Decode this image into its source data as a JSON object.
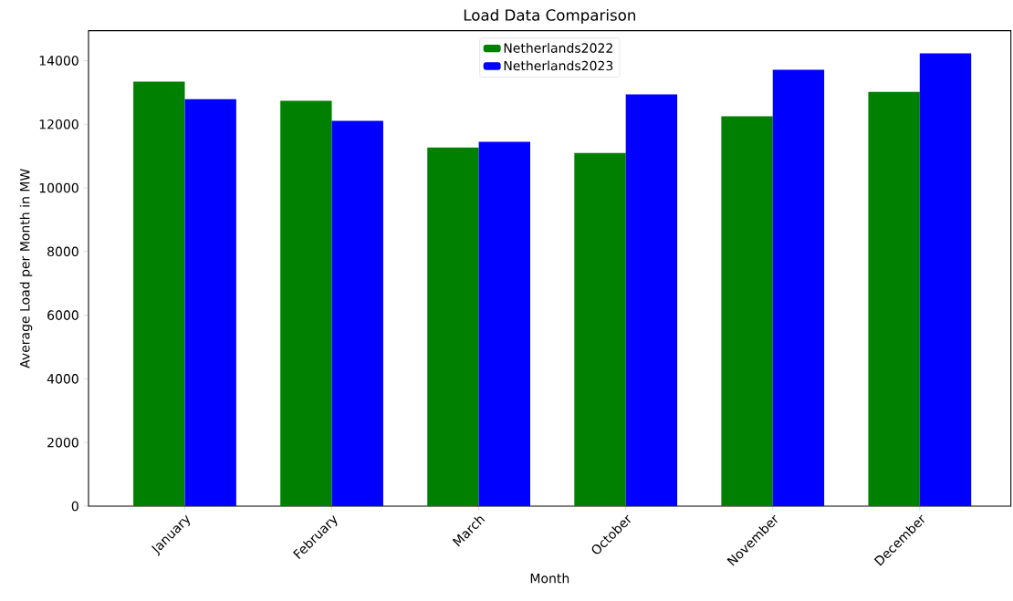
{
  "chart_data": {
    "type": "bar",
    "title": "Load Data Comparison",
    "xlabel": "Month",
    "ylabel": "Average Load per Month in MW",
    "categories": [
      "January",
      "February",
      "March",
      "October",
      "November",
      "December"
    ],
    "series": [
      {
        "name": "Netherlands2022",
        "color": "#008000",
        "values": [
          13340,
          12740,
          11270,
          11100,
          12250,
          13020
        ]
      },
      {
        "name": "Netherlands2023",
        "color": "#0000ff",
        "values": [
          12790,
          12110,
          11450,
          12940,
          13710,
          14230
        ]
      }
    ],
    "ylim": [
      0,
      14940
    ],
    "yticks": [
      0,
      2000,
      4000,
      6000,
      8000,
      10000,
      12000,
      14000
    ],
    "grid": false,
    "legend": "top"
  }
}
